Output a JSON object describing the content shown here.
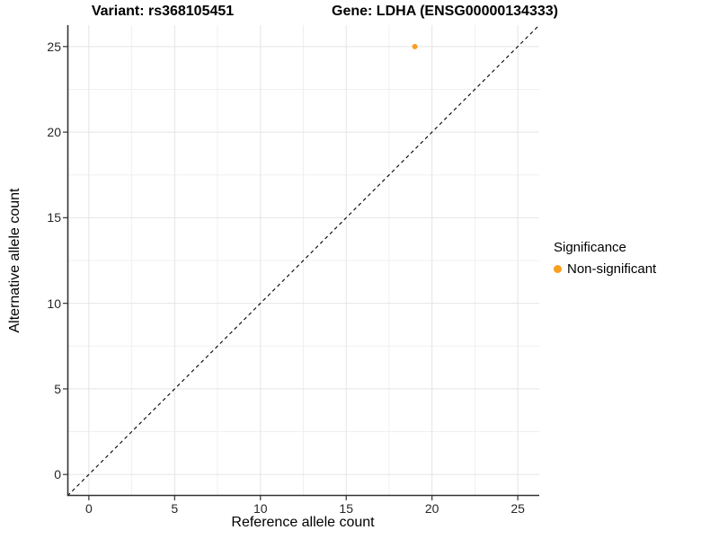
{
  "titles": {
    "variant": "Variant: rs368105451",
    "gene": "Gene: LDHA (ENSG00000134333)"
  },
  "axes": {
    "x": {
      "label": "Reference allele count"
    },
    "y": {
      "label": "Alternative allele count"
    }
  },
  "legend": {
    "title": "Significance",
    "items": [
      {
        "label": "Non-significant",
        "color": "#FA9F1E"
      }
    ]
  },
  "colors": {
    "background": "#ffffff",
    "axis_line": "#333333",
    "tick_mark": "#333333",
    "tick_text": "#262626",
    "grid_major": "#e4e4e4",
    "grid_minor": "#f0f0f0",
    "identity_line": "#000000",
    "point": "#FA9F1E"
  },
  "chart_data": {
    "type": "scatter",
    "title": "Variant: rs368105451 | Gene: LDHA (ENSG00000134333)",
    "xlabel": "Reference allele count",
    "ylabel": "Alternative allele count",
    "xlim": [
      -1.25,
      26.25
    ],
    "ylim": [
      -1.25,
      26.25
    ],
    "x_ticks": [
      0,
      5,
      10,
      15,
      20,
      25
    ],
    "y_ticks": [
      0,
      5,
      10,
      15,
      20,
      25
    ],
    "minor_step": 2.5,
    "grid": true,
    "legend_position": "right",
    "legend_title": "Significance",
    "reference_line": {
      "type": "identity",
      "slope": 1,
      "intercept": 0,
      "style": "dashed",
      "color": "#000000"
    },
    "series": [
      {
        "name": "Non-significant",
        "color": "#FA9F1E",
        "points": [
          {
            "x": 19,
            "y": 25
          }
        ]
      }
    ]
  }
}
